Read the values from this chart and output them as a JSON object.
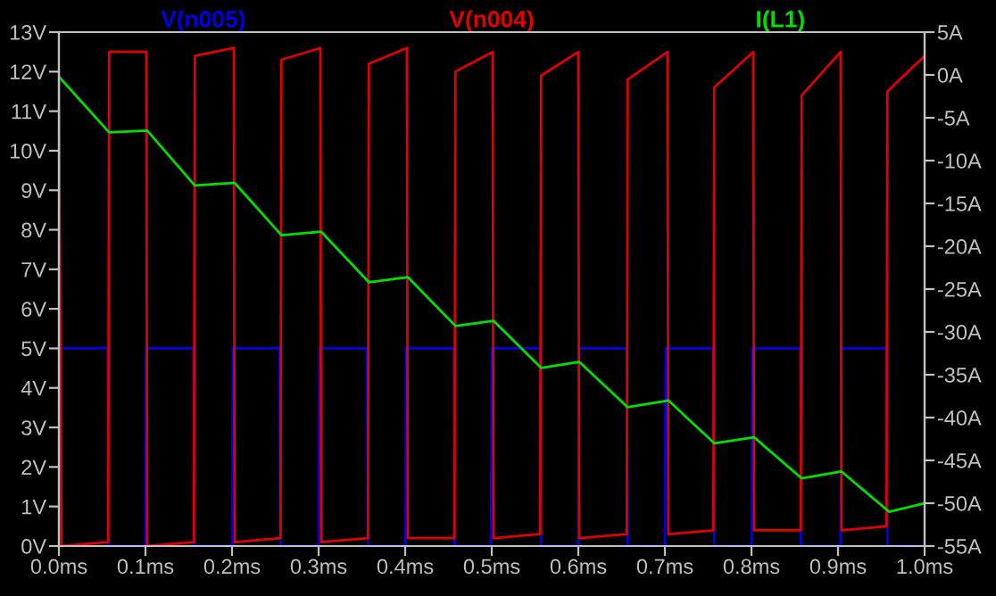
{
  "chart_data": {
    "type": "line",
    "legend": "top",
    "marker": "none",
    "line_style": "solid",
    "grid": false,
    "xlim": [
      0,
      1.0
    ],
    "ylim": [
      0,
      13
    ],
    "y2lim": [
      -55,
      5
    ],
    "xticks": [
      {
        "value": 0,
        "label": "0.0ms"
      },
      {
        "value": 0.1,
        "label": "0.1ms"
      },
      {
        "value": 0.2,
        "label": "0.2ms"
      },
      {
        "value": 0.3,
        "label": "0.3ms"
      },
      {
        "value": 0.4,
        "label": "0.4ms"
      },
      {
        "value": 0.5,
        "label": "0.5ms"
      },
      {
        "value": 0.6,
        "label": "0.6ms"
      },
      {
        "value": 0.7,
        "label": "0.7ms"
      },
      {
        "value": 0.8,
        "label": "0.8ms"
      },
      {
        "value": 0.9,
        "label": "0.9ms"
      },
      {
        "value": 1.0,
        "label": "1.0ms"
      }
    ],
    "yticks": [
      {
        "value": 0,
        "label": "0V"
      },
      {
        "value": 1,
        "label": "1V"
      },
      {
        "value": 2,
        "label": "2V"
      },
      {
        "value": 3,
        "label": "3V"
      },
      {
        "value": 4,
        "label": "4V"
      },
      {
        "value": 5,
        "label": "5V"
      },
      {
        "value": 6,
        "label": "6V"
      },
      {
        "value": 7,
        "label": "7V"
      },
      {
        "value": 8,
        "label": "8V"
      },
      {
        "value": 9,
        "label": "9V"
      },
      {
        "value": 10,
        "label": "10V"
      },
      {
        "value": 11,
        "label": "11V"
      },
      {
        "value": 12,
        "label": "12V"
      },
      {
        "value": 13,
        "label": "13V"
      }
    ],
    "y2ticks": [
      {
        "value": 5,
        "label": "5A"
      },
      {
        "value": 0,
        "label": "0A"
      },
      {
        "value": -5,
        "label": "-5A"
      },
      {
        "value": -10,
        "label": "-10A"
      },
      {
        "value": -15,
        "label": "-15A"
      },
      {
        "value": -20,
        "label": "-20A"
      },
      {
        "value": -25,
        "label": "-25A"
      },
      {
        "value": -30,
        "label": "-30A"
      },
      {
        "value": -35,
        "label": "-35A"
      },
      {
        "value": -40,
        "label": "-40A"
      },
      {
        "value": -45,
        "label": "-45A"
      },
      {
        "value": -50,
        "label": "-50A"
      },
      {
        "value": -55,
        "label": "-55A"
      }
    ],
    "series": [
      {
        "name": "V(n005)",
        "color": "#0000e0",
        "x": [
          0,
          0.001,
          0.056,
          0.057,
          0.1,
          0.101,
          0.155,
          0.156,
          0.2,
          0.201,
          0.255,
          0.256,
          0.3,
          0.301,
          0.356,
          0.357,
          0.4,
          0.401,
          0.456,
          0.457,
          0.499,
          0.5,
          0.556,
          0.557,
          0.6,
          0.601,
          0.656,
          0.657,
          0.7,
          0.701,
          0.756,
          0.757,
          0.8,
          0.801,
          0.856,
          0.857,
          0.903,
          0.904,
          0.956,
          0.957,
          1.0
        ],
        "values": [
          0,
          5,
          5,
          0,
          0,
          5,
          5,
          0,
          0,
          5,
          5,
          0,
          0,
          5,
          5,
          0,
          0,
          5,
          5,
          0,
          0,
          5,
          5,
          0,
          0,
          5,
          5,
          0,
          0,
          5,
          5,
          0,
          0,
          5,
          5,
          0,
          0,
          5,
          5,
          0,
          0
        ]
      },
      {
        "name": "V(n004)",
        "color": "#e00000",
        "x": [
          0,
          0.003,
          0.057,
          0.058,
          0.101,
          0.102,
          0.156,
          0.157,
          0.202,
          0.203,
          0.256,
          0.257,
          0.302,
          0.303,
          0.357,
          0.358,
          0.402,
          0.403,
          0.457,
          0.458,
          0.501,
          0.502,
          0.556,
          0.557,
          0.6,
          0.601,
          0.656,
          0.657,
          0.703,
          0.704,
          0.756,
          0.757,
          0.802,
          0.803,
          0.857,
          0.858,
          0.903,
          0.904,
          0.956,
          0.957,
          1.0
        ],
        "values": [
          12.0,
          0.0,
          0.1,
          12.5,
          12.5,
          0.0,
          0.1,
          12.4,
          12.6,
          0.1,
          0.2,
          12.3,
          12.6,
          0.1,
          0.2,
          12.2,
          12.6,
          0.2,
          0.2,
          12.0,
          12.5,
          0.2,
          0.3,
          11.9,
          12.5,
          0.2,
          0.3,
          11.8,
          12.5,
          0.3,
          0.4,
          11.6,
          12.5,
          0.4,
          0.4,
          11.4,
          12.5,
          0.4,
          0.5,
          11.5,
          12.4
        ]
      },
      {
        "name": "I(L1)",
        "color": "#00e000",
        "axis": "y2",
        "x": [
          0,
          0.058,
          0.102,
          0.157,
          0.203,
          0.257,
          0.303,
          0.358,
          0.403,
          0.458,
          0.502,
          0.557,
          0.601,
          0.657,
          0.704,
          0.757,
          0.803,
          0.858,
          0.904,
          0.959,
          1.0
        ],
        "values": [
          -0.2,
          -6.7,
          -6.5,
          -12.9,
          -12.6,
          -18.7,
          -18.3,
          -24.2,
          -23.6,
          -29.3,
          -28.7,
          -34.2,
          -33.5,
          -38.8,
          -38.0,
          -43.0,
          -42.3,
          -47.1,
          -46.3,
          -51.0,
          -50.0
        ]
      }
    ]
  }
}
